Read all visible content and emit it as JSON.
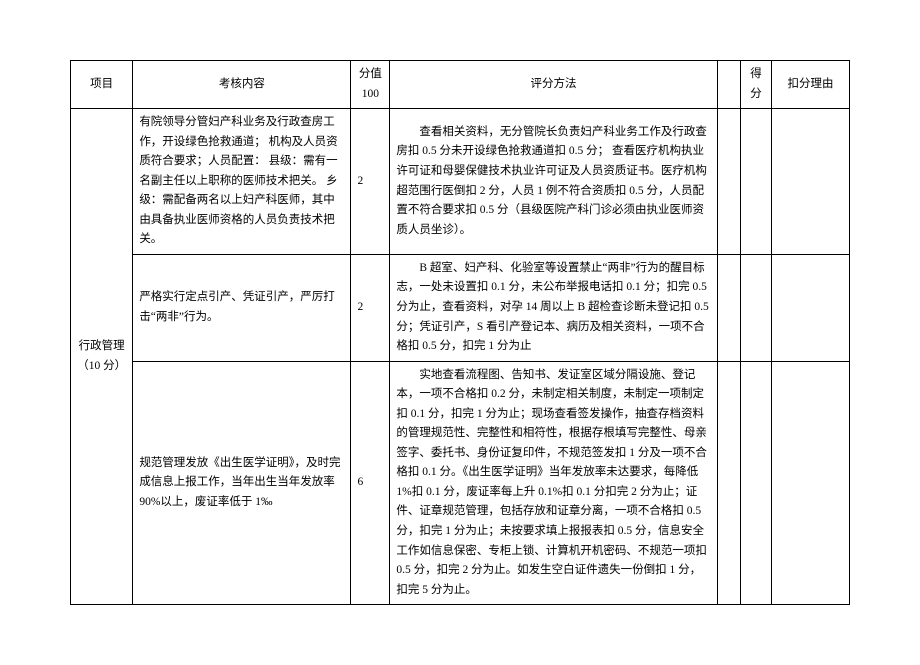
{
  "headers": {
    "project": "项目",
    "content": "考核内容",
    "score_max": "分值 100",
    "method": "评分方法",
    "blank": "",
    "got": "得分",
    "reason": "扣分理由"
  },
  "category": "行政管理（10 分）",
  "rows": [
    {
      "content": "有院领导分管妇产科业务及行政查房工作，开设绿色抢救通道；\n机构及人员资质符合要求；人员配置：\n县级：需有一名副主任以上职称的医师技术把关。\n乡级：需配备两名以上妇产科医师，其中由具备执业医师资格的人员负责技术把关。",
      "score": "2",
      "method": "查看相关资料，无分管院长负责妇产科业务工作及行政查房扣 0.5 分未开设绿色抢救通道扣 0.5 分；\n查看医疗机构执业许可证和母婴保健技术执业许可证及人员资质证书。医疗机构超范围行医倒扣 2 分，人员 1 例不符合资质扣 0.5 分，人员配置不符合要求扣 0.5 分（县级医院产科门诊必须由执业医师资质人员坐诊）。"
    },
    {
      "content": "严格实行定点引产、凭证引产，严厉打击“两非”行为。",
      "score": "2",
      "method": "B 超室、妇产科、化验室等设置禁止“两非”行为的醒目标志，一处未设置扣 0.1 分，未公布举报电话扣 0.1 分；扣完 0.5 分为止，查看资料，对孕 14 周以上 B 超检查诊断未登记扣 0.5 分；凭证引产，S 看引产登记本、病历及相关资料，一项不合格扣 0.5 分，扣完 1 分为止"
    },
    {
      "content": "规范管理发放《出生医学证明》，及时完成信息上报工作，当年出生当年发放率 90%以上，废证率低于 1‰",
      "score": "6",
      "method": "实地查看流程图、告知书、发证室区域分隔设施、登记本，一项不合格扣 0.2 分，未制定相关制度，未制定一项制定扣 0.1 分，扣完 1 分为止；现场查看签发操作，抽查存档资料的管理规范性、完整性和相符性，根据存根填写完整性、母亲签字、委托书、身份证复印件，不规范签发扣 1 分及一项不合格扣 0.1 分。《出生医学证明》当年发放率未达要求，每降低 1%扣 0.1 分，废证率每上升 0.1%扣 0.1 分扣完 2 分为止；证件、证章规范管理，包括存放和证章分离，一项不合格扣 0.5 分，扣完 1 分为止；未按要求填上报报表扣 0.5 分，信息安全工作如信息保密、专柜上锁、计算机开机密码、不规范一项扣 0.5 分，扣完 2 分为止。如发生空白证件遗失一份倒扣 1 分，扣完 5 分为止。"
    }
  ]
}
